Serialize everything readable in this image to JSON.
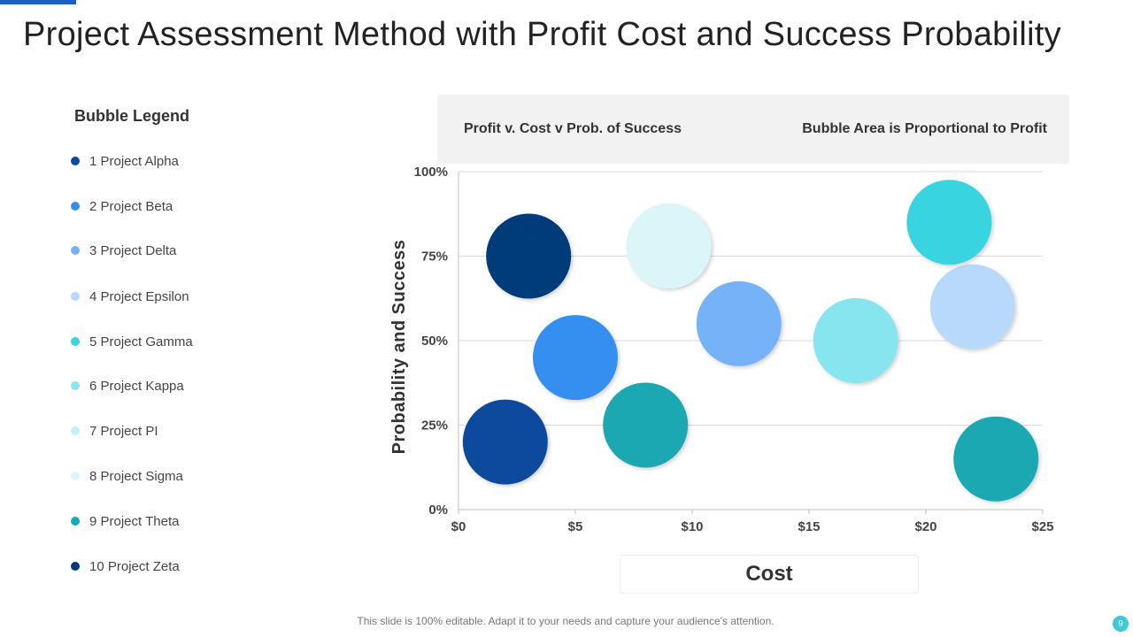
{
  "title": "Project Assessment Method with Profit Cost and Success Probability",
  "legend": {
    "title": "Bubble Legend",
    "items": [
      {
        "label": "1 Project Alpha",
        "color": "#0a4a9c"
      },
      {
        "label": "2 Project Beta",
        "color": "#348ff0"
      },
      {
        "label": "3 Project Delta",
        "color": "#74b2f7"
      },
      {
        "label": "4 Project Epsilon",
        "color": "#b9d9fb"
      },
      {
        "label": "5 Project Gamma",
        "color": "#39d4df"
      },
      {
        "label": "6 Project Kappa",
        "color": "#86e5ee"
      },
      {
        "label": "7 Project PI",
        "color": "#c3f1f5"
      },
      {
        "label": "8 Project Sigma",
        "color": "#daf6f8"
      },
      {
        "label": "9 Project Theta",
        "color": "#1ba8b2"
      },
      {
        "label": "10 Project Zeta",
        "color": "#003a7a"
      }
    ]
  },
  "chart_header": {
    "left": "Profit v. Cost v Prob. of Success",
    "right": "Bubble Area is Proportional to Profit"
  },
  "footer": "This slide is 100% editable. Adapt it to your needs and capture your audience's attention.",
  "page_number": "9",
  "chart_data": {
    "type": "bubble",
    "title": "",
    "xlabel": "Cost",
    "ylabel": "Probability and Success",
    "xlim": [
      0,
      25
    ],
    "ylim": [
      0,
      100
    ],
    "x_ticks": [
      "$0",
      "$5",
      "$10",
      "$15",
      "$20",
      "$25"
    ],
    "y_ticks": [
      "0%",
      "25%",
      "50%",
      "75%",
      "100%"
    ],
    "grid": "horizontal",
    "points": [
      {
        "x": 2,
        "y": 20,
        "size": 1,
        "color": "#0a4a9c"
      },
      {
        "x": 5,
        "y": 45,
        "size": 1,
        "color": "#348ff0"
      },
      {
        "x": 12,
        "y": 55,
        "size": 1,
        "color": "#74b2f7"
      },
      {
        "x": 22,
        "y": 60,
        "size": 1,
        "color": "#b9d9fb"
      },
      {
        "x": 21,
        "y": 85,
        "size": 1,
        "color": "#39d4df"
      },
      {
        "x": 17,
        "y": 50,
        "size": 1,
        "color": "#86e5ee"
      },
      {
        "x": 9,
        "y": 78,
        "size": 1,
        "color": "#daf6f8"
      },
      {
        "x": 8,
        "y": 25,
        "size": 1,
        "color": "#1ba8b2"
      },
      {
        "x": 23,
        "y": 15,
        "size": 1,
        "color": "#1ba8b2"
      },
      {
        "x": 3,
        "y": 75,
        "size": 1,
        "color": "#003a7a"
      }
    ]
  }
}
